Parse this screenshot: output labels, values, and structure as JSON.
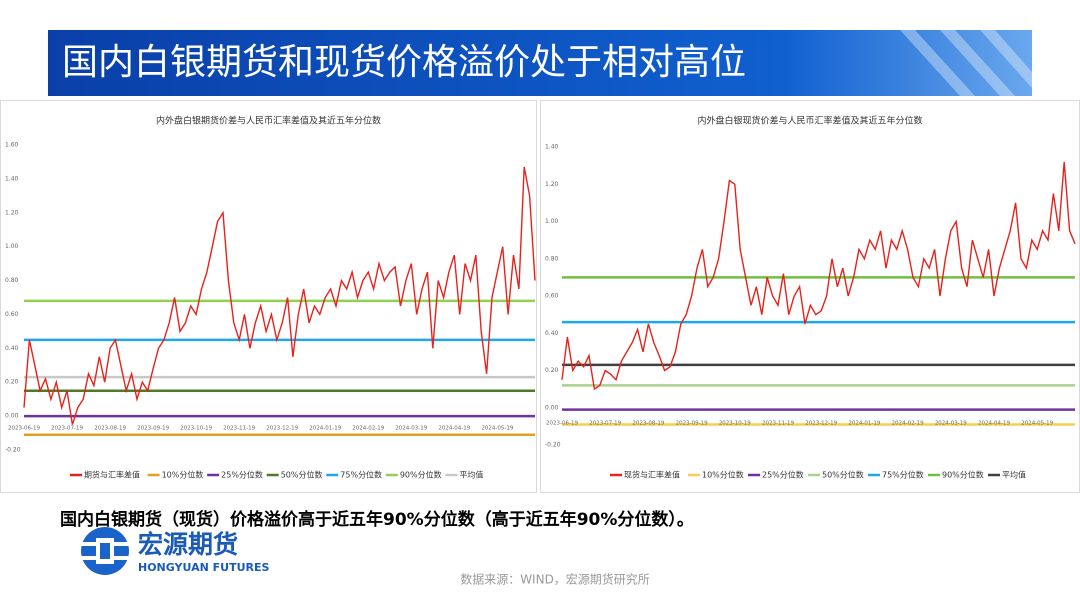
{
  "header": {
    "title": "国内白银期货和现货价格溢价处于相对高位"
  },
  "caption": "国内白银期货（现货）价格溢价高于近五年90%分位数（高于近五年90%分位数）。",
  "logo": {
    "name": "宏源期货",
    "english": "HONGYUAN FUTURES"
  },
  "source": "数据来源：WIND，宏源期货研究所",
  "chart_data": [
    {
      "type": "line",
      "title": "内外盘白银期货价差与人民币汇率差值及其近五年分位数",
      "categories": [
        "2023-06-19",
        null,
        null,
        null,
        null,
        null,
        null,
        null,
        "2023-07-19",
        null,
        null,
        null,
        null,
        null,
        null,
        null,
        "2023-08-19",
        null,
        null,
        null,
        null,
        null,
        null,
        null,
        "2023-09-19",
        null,
        null,
        null,
        null,
        null,
        null,
        null,
        "2023-10-19",
        null,
        null,
        null,
        null,
        null,
        null,
        null,
        "2023-11-19",
        null,
        null,
        null,
        null,
        null,
        null,
        null,
        "2023-12-19",
        null,
        null,
        null,
        null,
        null,
        null,
        null,
        "2024-01-19",
        null,
        null,
        null,
        null,
        null,
        null,
        null,
        "2024-02-19",
        null,
        null,
        null,
        null,
        null,
        null,
        null,
        "2024-03-19",
        null,
        null,
        null,
        null,
        null,
        null,
        null,
        "2024-04-19",
        null,
        null,
        null,
        null,
        null,
        null,
        null,
        "2024-05-19",
        null,
        null,
        null,
        null,
        null,
        null,
        null
      ],
      "series": [
        {
          "name": "期货与汇率差值",
          "color": "#e8211b",
          "values": [
            0.05,
            0.45,
            0.3,
            0.15,
            0.22,
            0.1,
            0.2,
            0.05,
            0.15,
            -0.05,
            0.05,
            0.1,
            0.25,
            0.18,
            0.35,
            0.2,
            0.4,
            0.45,
            0.3,
            0.15,
            0.25,
            0.1,
            0.2,
            0.15,
            0.28,
            0.4,
            0.45,
            0.55,
            0.7,
            0.5,
            0.55,
            0.65,
            0.6,
            0.75,
            0.85,
            1.0,
            1.15,
            1.2,
            0.8,
            0.55,
            0.45,
            0.6,
            0.4,
            0.55,
            0.65,
            0.5,
            0.6,
            0.45,
            0.55,
            0.7,
            0.35,
            0.6,
            0.75,
            0.55,
            0.65,
            0.6,
            0.7,
            0.75,
            0.65,
            0.8,
            0.75,
            0.85,
            0.7,
            0.8,
            0.85,
            0.75,
            0.9,
            0.8,
            0.85,
            0.88,
            0.65,
            0.8,
            0.9,
            0.6,
            0.75,
            0.85,
            0.4,
            0.8,
            0.7,
            0.85,
            0.95,
            0.6,
            0.9,
            0.8,
            0.95,
            0.5,
            0.25,
            0.7,
            0.85,
            1.0,
            0.6,
            0.95,
            0.75,
            1.47,
            1.3,
            0.8
          ]
        }
      ],
      "reference_lines": [
        {
          "name": "10%分位数",
          "color": "#e0a020",
          "value": -0.11
        },
        {
          "name": "25%分位数",
          "color": "#7030a0",
          "value": 0
        },
        {
          "name": "50%分位数",
          "color": "#4e7a2a",
          "value": 0.15
        },
        {
          "name": "75%分位数",
          "color": "#1ea8e8",
          "value": 0.45
        },
        {
          "name": "90%分位数",
          "color": "#92d050",
          "value": 0.68
        },
        {
          "name": "平均值",
          "color": "#c8c8c8",
          "value": 0.23
        }
      ],
      "ylim": [
        -0.2,
        1.6
      ],
      "yticks": [
        {
          "value": -0.2,
          "label": "-0.20"
        },
        {
          "value": 0,
          "label": "0.00"
        },
        {
          "value": 0.2,
          "label": "0.20"
        },
        {
          "value": 0.4,
          "label": "0.40"
        },
        {
          "value": 0.6,
          "label": "0.60"
        },
        {
          "value": 0.8,
          "label": "0.80"
        },
        {
          "value": 1.0,
          "label": "1.00"
        },
        {
          "value": 1.2,
          "label": "1.20"
        },
        {
          "value": 1.4,
          "label": "1.40"
        },
        {
          "value": 1.6,
          "label": "1.60"
        }
      ],
      "legend": "bottom"
    },
    {
      "type": "line",
      "title": "内外盘白银现货价差与人民币汇率差值及其近五年分位数",
      "categories": [
        "2023-06-19",
        null,
        null,
        null,
        null,
        null,
        null,
        null,
        "2023-07-19",
        null,
        null,
        null,
        null,
        null,
        null,
        null,
        "2023-08-19",
        null,
        null,
        null,
        null,
        null,
        null,
        null,
        "2023-09-19",
        null,
        null,
        null,
        null,
        null,
        null,
        null,
        "2023-10-19",
        null,
        null,
        null,
        null,
        null,
        null,
        null,
        "2023-11-19",
        null,
        null,
        null,
        null,
        null,
        null,
        null,
        "2023-12-19",
        null,
        null,
        null,
        null,
        null,
        null,
        null,
        "2024-01-19",
        null,
        null,
        null,
        null,
        null,
        null,
        null,
        "2024-02-19",
        null,
        null,
        null,
        null,
        null,
        null,
        null,
        "2024-03-19",
        null,
        null,
        null,
        null,
        null,
        null,
        null,
        "2024-04-19",
        null,
        null,
        null,
        null,
        null,
        null,
        null,
        "2024-05-19",
        null,
        null,
        null,
        null,
        null,
        null,
        null
      ],
      "series": [
        {
          "name": "现货与汇率差值",
          "color": "#e8211b",
          "values": [
            0.15,
            0.38,
            0.2,
            0.25,
            0.22,
            0.28,
            0.1,
            0.12,
            0.2,
            0.18,
            0.15,
            0.25,
            0.3,
            0.35,
            0.42,
            0.3,
            0.45,
            0.35,
            0.28,
            0.2,
            0.22,
            0.3,
            0.45,
            0.5,
            0.6,
            0.75,
            0.85,
            0.65,
            0.7,
            0.8,
            1.0,
            1.22,
            1.2,
            0.85,
            0.7,
            0.55,
            0.65,
            0.5,
            0.7,
            0.6,
            0.55,
            0.72,
            0.5,
            0.6,
            0.65,
            0.45,
            0.55,
            0.5,
            0.52,
            0.6,
            0.8,
            0.65,
            0.75,
            0.6,
            0.7,
            0.85,
            0.8,
            0.9,
            0.85,
            0.95,
            0.75,
            0.9,
            0.85,
            0.95,
            0.85,
            0.7,
            0.65,
            0.8,
            0.75,
            0.85,
            0.6,
            0.8,
            0.95,
            1.0,
            0.75,
            0.65,
            0.9,
            0.8,
            0.7,
            0.85,
            0.6,
            0.75,
            0.85,
            0.95,
            1.1,
            0.8,
            0.75,
            0.9,
            0.85,
            0.95,
            0.9,
            1.15,
            0.95,
            1.32,
            0.95,
            0.88
          ]
        }
      ],
      "reference_lines": [
        {
          "name": "10%分位数",
          "color": "#f5d050",
          "value": -0.09
        },
        {
          "name": "25%分位数",
          "color": "#7030a0",
          "value": -0.01
        },
        {
          "name": "50%分位数",
          "color": "#a9d18e",
          "value": 0.12
        },
        {
          "name": "75%分位数",
          "color": "#1ea8e8",
          "value": 0.46
        },
        {
          "name": "90%分位数",
          "color": "#70c040",
          "value": 0.7
        },
        {
          "name": "平均值",
          "color": "#404040",
          "value": 0.23
        }
      ],
      "ylim": [
        -0.2,
        1.4
      ],
      "yticks": [
        {
          "value": -0.2,
          "label": "-0.20"
        },
        {
          "value": 0,
          "label": "0.00"
        },
        {
          "value": 0.2,
          "label": "0.20"
        },
        {
          "value": 0.4,
          "label": "0.40"
        },
        {
          "value": 0.6,
          "label": "0.60"
        },
        {
          "value": 0.8,
          "label": "0.80"
        },
        {
          "value": 1.0,
          "label": "1.00"
        },
        {
          "value": 1.2,
          "label": "1.20"
        },
        {
          "value": 1.4,
          "label": "1.40"
        }
      ],
      "legend": "bottom"
    }
  ]
}
